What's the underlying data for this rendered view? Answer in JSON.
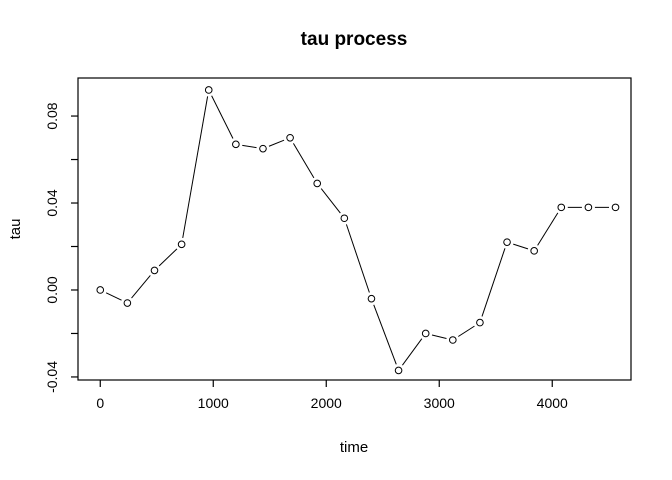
{
  "chart_data": {
    "type": "line",
    "title": "tau process",
    "xlabel": "time",
    "ylabel": "tau",
    "marker": "open-circle",
    "line_style": "segments-with-gaps-around-markers",
    "grid": false,
    "legend": "none",
    "background": "#ffffff",
    "line_color": "#000000",
    "marker_color": "#000000",
    "frame_color": "#000000",
    "x": [
      0,
      240,
      480,
      720,
      960,
      1200,
      1440,
      1680,
      1920,
      2160,
      2400,
      2640,
      2880,
      3120,
      3360,
      3600,
      3840,
      4080,
      4320,
      4560
    ],
    "y": [
      0.0,
      -0.006,
      0.009,
      0.021,
      0.092,
      0.067,
      0.065,
      0.07,
      0.049,
      0.033,
      -0.004,
      -0.037,
      -0.02,
      -0.023,
      -0.015,
      0.022,
      0.018,
      0.038,
      0.038,
      0.038
    ],
    "xlim": [
      -197,
      4697
    ],
    "ylim": [
      -0.0414,
      0.0975
    ],
    "x_ticks": [
      0,
      1000,
      2000,
      3000,
      4000
    ],
    "x_tick_labels": [
      "0",
      "1000",
      "2000",
      "3000",
      "4000"
    ],
    "y_ticks": [
      -0.04,
      -0.02,
      0.0,
      0.02,
      0.04,
      0.06,
      0.08
    ],
    "y_tick_labels": [
      "-0.04",
      "",
      "0.00",
      "",
      "0.04",
      "",
      "0.08"
    ]
  }
}
